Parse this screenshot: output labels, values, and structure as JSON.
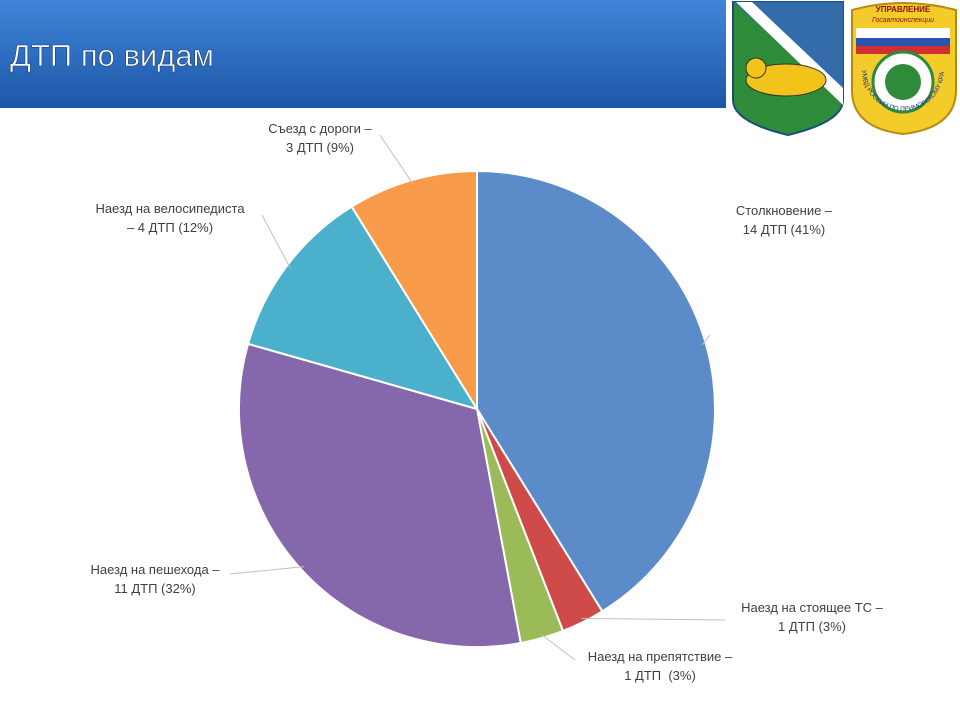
{
  "chart_data": {
    "type": "pie",
    "title": "ДТП по видам",
    "categories": [
      "Столкновение –",
      "Наезд на стоящее ТС –",
      "Наезд на препятствие –",
      "Наезд на пешехода –",
      "Наезд на велосипедиста",
      "Съезд с дороги –"
    ],
    "values": [
      14,
      1,
      1,
      11,
      4,
      3
    ],
    "value_labels": [
      "14 ДТП (41%)",
      "1 ДТП (3%)",
      "1 ДТП  (3%)",
      "11 ДТП (32%)",
      "– 4 ДТП (12%)",
      "3 ДТП (9%)"
    ],
    "colors": [
      "#5b8bc9",
      "#cf4b4a",
      "#9bbb59",
      "#8567ac",
      "#4bb0cb",
      "#f79b4a"
    ]
  },
  "emblem": {
    "top": "УПРАВЛЕНИЕ",
    "sub": "Госавтоинспекции",
    "ring": "УМВД РОССИИ ПО ПРИМОРСКОМУ КРАЮ"
  }
}
